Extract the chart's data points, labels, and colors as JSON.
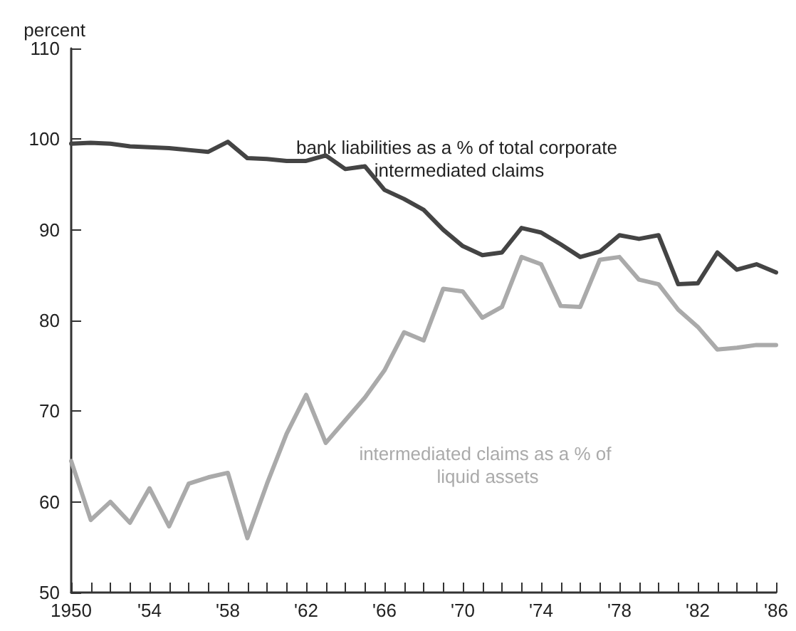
{
  "chart_data": {
    "type": "line",
    "ylabel": "percent",
    "x": [
      1950,
      1951,
      1952,
      1953,
      1954,
      1955,
      1956,
      1957,
      1958,
      1959,
      1960,
      1961,
      1962,
      1963,
      1964,
      1965,
      1966,
      1967,
      1968,
      1969,
      1970,
      1971,
      1972,
      1973,
      1974,
      1975,
      1976,
      1977,
      1978,
      1979,
      1980,
      1981,
      1982,
      1983,
      1984,
      1985,
      1986
    ],
    "series": [
      {
        "name": "bank liabilities as a % of total corporate intermediated claims",
        "color": "#444444",
        "values": [
          99.5,
          99.6,
          99.5,
          99.2,
          99.1,
          99,
          98.8,
          98.6,
          99.7,
          97.9,
          97.8,
          97.6,
          97.6,
          98.2,
          96.7,
          97,
          94.4,
          93.4,
          92.2,
          90,
          88.2,
          87.2,
          87.5,
          90.2,
          89.7,
          88.4,
          87,
          87.6,
          89.4,
          89,
          89.4,
          84,
          84.1,
          87.5,
          85.6,
          86.2,
          85.3
        ]
      },
      {
        "name": "intermediated claims as a % of liquid assets",
        "color": "#aaaaaa",
        "values": [
          64.5,
          58,
          60,
          57.7,
          61.5,
          57.3,
          62,
          62.7,
          63.2,
          56,
          62,
          67.5,
          71.8,
          66.5,
          69,
          71.5,
          74.5,
          78.7,
          77.8,
          83.5,
          83.2,
          80.3,
          81.5,
          87,
          86.2,
          81.6,
          81.5,
          86.7,
          87,
          84.5,
          84,
          81.2,
          79.3,
          76.8,
          77,
          77.3,
          77.3
        ]
      }
    ],
    "xlim": [
      1950,
      1986
    ],
    "xticks": [
      {
        "value": 1950,
        "label": "1950"
      },
      {
        "value": 1951,
        "label": null
      },
      {
        "value": 1952,
        "label": null
      },
      {
        "value": 1953,
        "label": null
      },
      {
        "value": 1954,
        "label": "'54"
      },
      {
        "value": 1955,
        "label": null
      },
      {
        "value": 1956,
        "label": null
      },
      {
        "value": 1957,
        "label": null
      },
      {
        "value": 1958,
        "label": "'58"
      },
      {
        "value": 1959,
        "label": null
      },
      {
        "value": 1960,
        "label": null
      },
      {
        "value": 1961,
        "label": null
      },
      {
        "value": 1962,
        "label": "'62"
      },
      {
        "value": 1963,
        "label": null
      },
      {
        "value": 1964,
        "label": null
      },
      {
        "value": 1965,
        "label": null
      },
      {
        "value": 1966,
        "label": "'66"
      },
      {
        "value": 1967,
        "label": null
      },
      {
        "value": 1968,
        "label": null
      },
      {
        "value": 1969,
        "label": null
      },
      {
        "value": 1970,
        "label": "'70"
      },
      {
        "value": 1971,
        "label": null
      },
      {
        "value": 1972,
        "label": null
      },
      {
        "value": 1973,
        "label": null
      },
      {
        "value": 1974,
        "label": "'74"
      },
      {
        "value": 1975,
        "label": null
      },
      {
        "value": 1976,
        "label": null
      },
      {
        "value": 1977,
        "label": null
      },
      {
        "value": 1978,
        "label": "'78"
      },
      {
        "value": 1979,
        "label": null
      },
      {
        "value": 1980,
        "label": null
      },
      {
        "value": 1981,
        "label": null
      },
      {
        "value": 1982,
        "label": "'82"
      },
      {
        "value": 1983,
        "label": null
      },
      {
        "value": 1984,
        "label": null
      },
      {
        "value": 1985,
        "label": null
      },
      {
        "value": 1986,
        "label": "'86"
      }
    ],
    "ylim": [
      50,
      110
    ],
    "yticks": [
      50,
      60,
      70,
      80,
      90,
      100,
      110
    ],
    "grid": false,
    "legend": false,
    "marker": "none",
    "line_style": "solid"
  }
}
